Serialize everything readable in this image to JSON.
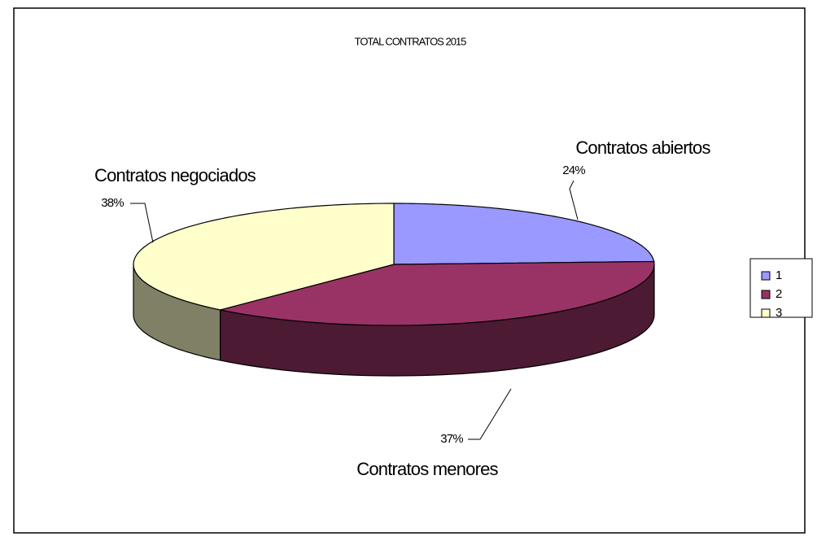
{
  "chart_data": {
    "type": "pie",
    "title": "TOTAL CONTRATOS 2015",
    "categories": [
      "Contratos abiertos",
      "Contratos menores",
      "Contratos negociados"
    ],
    "values": [
      24,
      37,
      38
    ],
    "value_labels": [
      "24%",
      "37%",
      "38%"
    ],
    "colors": [
      "#9999ff",
      "#993366",
      "#ffffcc"
    ],
    "legend": [
      "1",
      "2",
      "3"
    ],
    "legend_position": "right"
  }
}
